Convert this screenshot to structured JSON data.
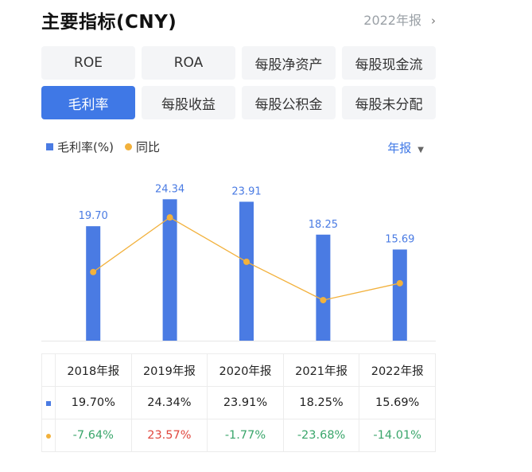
{
  "header": {
    "title": "主要指标(CNY)",
    "period": "2022年报",
    "period_chevron": "›"
  },
  "tabs": [
    {
      "label": "ROE",
      "active": false
    },
    {
      "label": "ROA",
      "active": false
    },
    {
      "label": "每股净资产",
      "active": false
    },
    {
      "label": "每股现金流",
      "active": false
    },
    {
      "label": "毛利率",
      "active": true
    },
    {
      "label": "每股收益",
      "active": false
    },
    {
      "label": "每股公积金",
      "active": false
    },
    {
      "label": "每股未分配",
      "active": false
    }
  ],
  "legend": {
    "series1": "毛利率(%)",
    "series2": "同比"
  },
  "frequency": {
    "label": "年报",
    "caret": "▼"
  },
  "colors": {
    "bar": "#4a7be3",
    "line": "#f2b13c",
    "accent": "#3f78e6",
    "positive": "#e0483f",
    "negative": "#3aa66b"
  },
  "chart_data": {
    "type": "bar",
    "categories": [
      "2018年报",
      "2019年报",
      "2020年报",
      "2021年报",
      "2022年报"
    ],
    "series": [
      {
        "name": "毛利率(%)",
        "type": "bar",
        "values": [
          19.7,
          24.34,
          23.91,
          18.25,
          15.69
        ],
        "labels": [
          "19.70",
          "24.34",
          "23.91",
          "18.25",
          "15.69"
        ]
      },
      {
        "name": "同比",
        "type": "line",
        "values": [
          -7.64,
          23.57,
          -1.77,
          -23.68,
          -14.01
        ]
      }
    ],
    "grid": false
  },
  "table": {
    "headers": [
      "2018年报",
      "2019年报",
      "2020年报",
      "2021年报",
      "2022年报"
    ],
    "rows": [
      {
        "marker": "bar",
        "cells": [
          "19.70%",
          "24.34%",
          "23.91%",
          "18.25%",
          "15.69%"
        ]
      },
      {
        "marker": "line",
        "cells": [
          "-7.64%",
          "23.57%",
          "-1.77%",
          "-23.68%",
          "-14.01%"
        ]
      }
    ]
  }
}
